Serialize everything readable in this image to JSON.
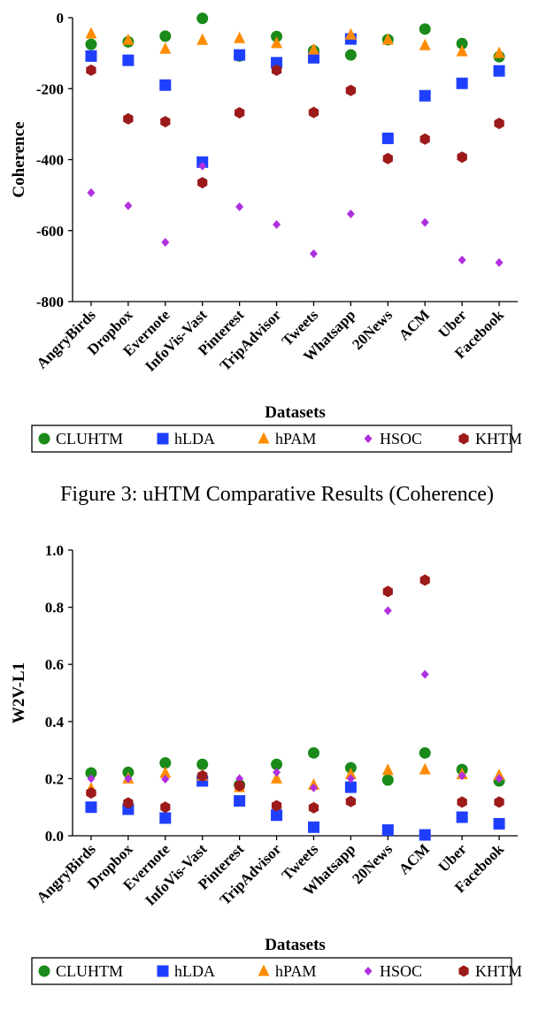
{
  "caption1": "Figure 3: uHTM Comparative Results (Coherence)",
  "chart_data": [
    {
      "type": "scatter",
      "xlabel": "Datasets",
      "ylabel": "Coherence",
      "ylim": [
        -800,
        0
      ],
      "yticks": [
        0,
        -200,
        -400,
        -600,
        -800
      ],
      "ytick_labels": [
        "0",
        "-200",
        "-400",
        "-600",
        "-800"
      ],
      "categories": [
        "AngryBirds",
        "Dropbox",
        "Evernote",
        "InfoVis-Vast",
        "Pinterest",
        "TripAdvisor",
        "Tweets",
        "Whatsapp",
        "20News",
        "ACM",
        "Uber",
        "Facebook"
      ],
      "legend_position": "bottom",
      "series": [
        {
          "name": "CLUHTM",
          "marker": "circle",
          "color": "#1a8a1a",
          "values": [
            -75,
            -68,
            -52,
            -2,
            -108,
            -53,
            -93,
            -105,
            -62,
            -32,
            -73,
            -110
          ]
        },
        {
          "name": "hLDA",
          "marker": "square",
          "color": "#1f3fff",
          "values": [
            -108,
            -120,
            -190,
            -407,
            -105,
            -127,
            -113,
            -60,
            -340,
            -220,
            -185,
            -150
          ]
        },
        {
          "name": "hPAM",
          "marker": "triangle",
          "color": "#ff8c00",
          "values": [
            -45,
            -63,
            -88,
            -63,
            -58,
            -72,
            -90,
            -48,
            -62,
            -78,
            -95,
            -100
          ]
        },
        {
          "name": "HSOC",
          "marker": "diamond",
          "color": "#b030e0",
          "values": [
            -493,
            -530,
            -633,
            -418,
            -533,
            -583,
            -665,
            -553,
            -395,
            -577,
            -683,
            -690
          ]
        },
        {
          "name": "KHTM",
          "marker": "hexagon",
          "color": "#9c1a1a",
          "values": [
            -148,
            -285,
            -293,
            -465,
            -268,
            -148,
            -267,
            -205,
            -397,
            -342,
            -393,
            -298
          ]
        }
      ]
    },
    {
      "type": "scatter",
      "xlabel": "Datasets",
      "ylabel": "W2V-L1",
      "ylim": [
        0.0,
        1.0
      ],
      "yticks": [
        0.0,
        0.2,
        0.4,
        0.6,
        0.8,
        1.0
      ],
      "ytick_labels": [
        "0.0",
        "0.2",
        "0.4",
        "0.6",
        "0.8",
        "1.0"
      ],
      "categories": [
        "AngryBirds",
        "Dropbox",
        "Evernote",
        "InfoVis-Vast",
        "Pinterest",
        "TripAdvisor",
        "Tweets",
        "Whatsapp",
        "20News",
        "ACM",
        "Uber",
        "Facebook"
      ],
      "legend_position": "bottom",
      "series": [
        {
          "name": "CLUHTM",
          "marker": "circle",
          "color": "#1a8a1a",
          "values": [
            0.22,
            0.222,
            0.255,
            0.25,
            0.178,
            0.25,
            0.29,
            0.238,
            0.195,
            0.29,
            0.232,
            0.192
          ]
        },
        {
          "name": "hLDA",
          "marker": "square",
          "color": "#1f3fff",
          "values": [
            0.1,
            0.093,
            0.062,
            0.192,
            0.122,
            0.072,
            0.03,
            0.17,
            0.02,
            0.003,
            0.065,
            0.042
          ]
        },
        {
          "name": "hPAM",
          "marker": "triangle",
          "color": "#ff8c00",
          "values": [
            0.165,
            0.2,
            0.22,
            0.21,
            0.17,
            0.2,
            0.178,
            0.215,
            0.23,
            0.232,
            0.215,
            0.212
          ]
        },
        {
          "name": "HSOC",
          "marker": "diamond",
          "color": "#b030e0",
          "values": [
            0.2,
            0.2,
            0.198,
            0.208,
            0.2,
            0.222,
            0.168,
            0.2,
            0.788,
            0.565,
            0.21,
            0.2
          ]
        },
        {
          "name": "KHTM",
          "marker": "hexagon",
          "color": "#9c1a1a",
          "values": [
            0.15,
            0.115,
            0.1,
            0.21,
            0.175,
            0.105,
            0.098,
            0.12,
            0.855,
            0.895,
            0.118,
            0.118
          ]
        }
      ]
    }
  ]
}
